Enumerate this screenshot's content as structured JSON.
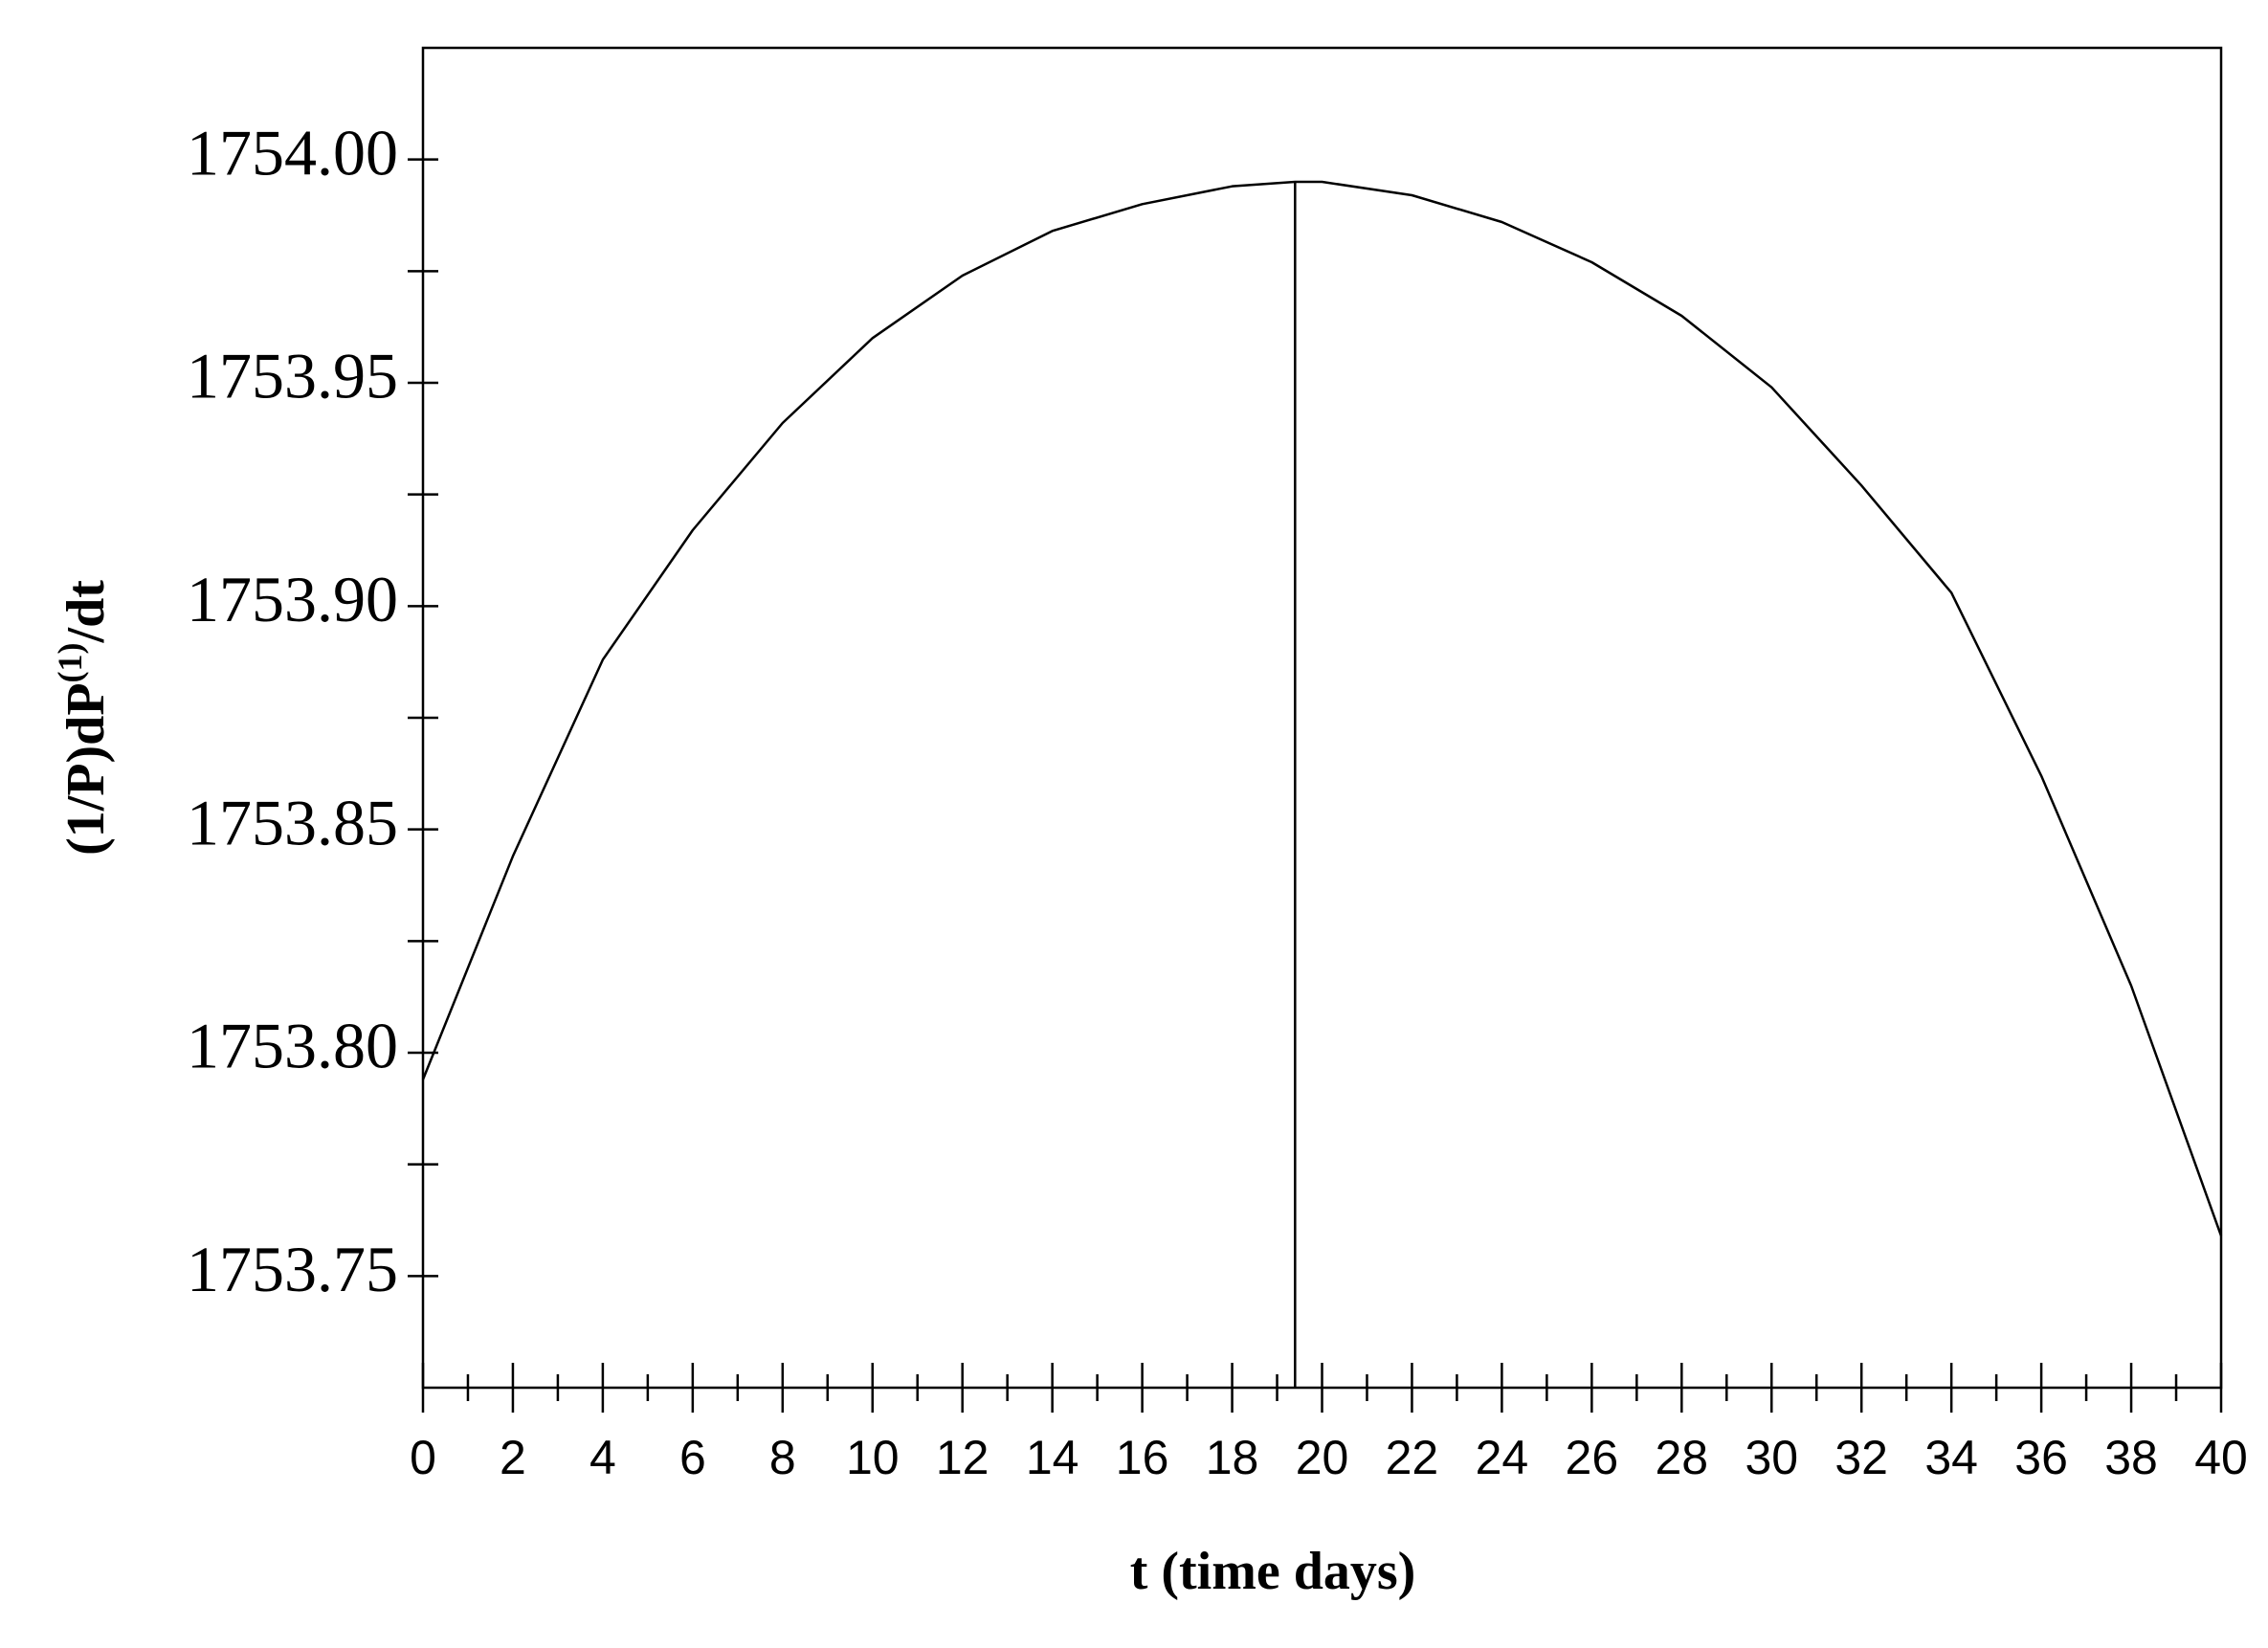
{
  "chart_data": {
    "type": "line",
    "x_label": "t (time days)",
    "y_label": "(1/P)dP",
    "y_label_sup": "(1)",
    "y_label_end": "/dt",
    "x": [
      0,
      2,
      4,
      6,
      8,
      10,
      12,
      14,
      16,
      18,
      19.4,
      20,
      22,
      24,
      26,
      28,
      30,
      32,
      34,
      36,
      38,
      40
    ],
    "series": [
      {
        "color": "#000000",
        "values": [
          1753.794,
          1753.844,
          1753.888,
          1753.917,
          1753.941,
          1753.96,
          1753.974,
          1753.984,
          1753.99,
          1753.994,
          1753.995,
          1753.995,
          1753.992,
          1753.986,
          1753.977,
          1753.965,
          1753.949,
          1753.927,
          1753.903,
          1753.862,
          1753.815,
          1753.759
        ]
      }
    ],
    "vline": {
      "x": 19.4,
      "y": 1753.995
    },
    "xlim": [
      0,
      40
    ],
    "ylim": [
      1753.725,
      1754.025
    ],
    "xticks": [
      0,
      2,
      4,
      6,
      8,
      10,
      12,
      14,
      16,
      18,
      20,
      22,
      24,
      26,
      28,
      30,
      32,
      34,
      36,
      38,
      40
    ],
    "xminor_ticks": [
      1,
      3,
      5,
      7,
      9,
      11,
      13,
      15,
      17,
      19,
      21,
      23,
      25,
      27,
      29,
      31,
      33,
      35,
      37,
      39
    ],
    "yticks": [
      1753.75,
      {
        "value": 1753.8,
        "label": "1753.80"
      },
      1753.85,
      {
        "value": 1753.9,
        "label": "1753.90"
      },
      1753.95,
      {
        "value": 1754,
        "label": "1754.00"
      }
    ],
    "yminor_ticks": [
      1753.775,
      1753.825,
      1753.875,
      1753.925,
      1753.975
    ]
  }
}
